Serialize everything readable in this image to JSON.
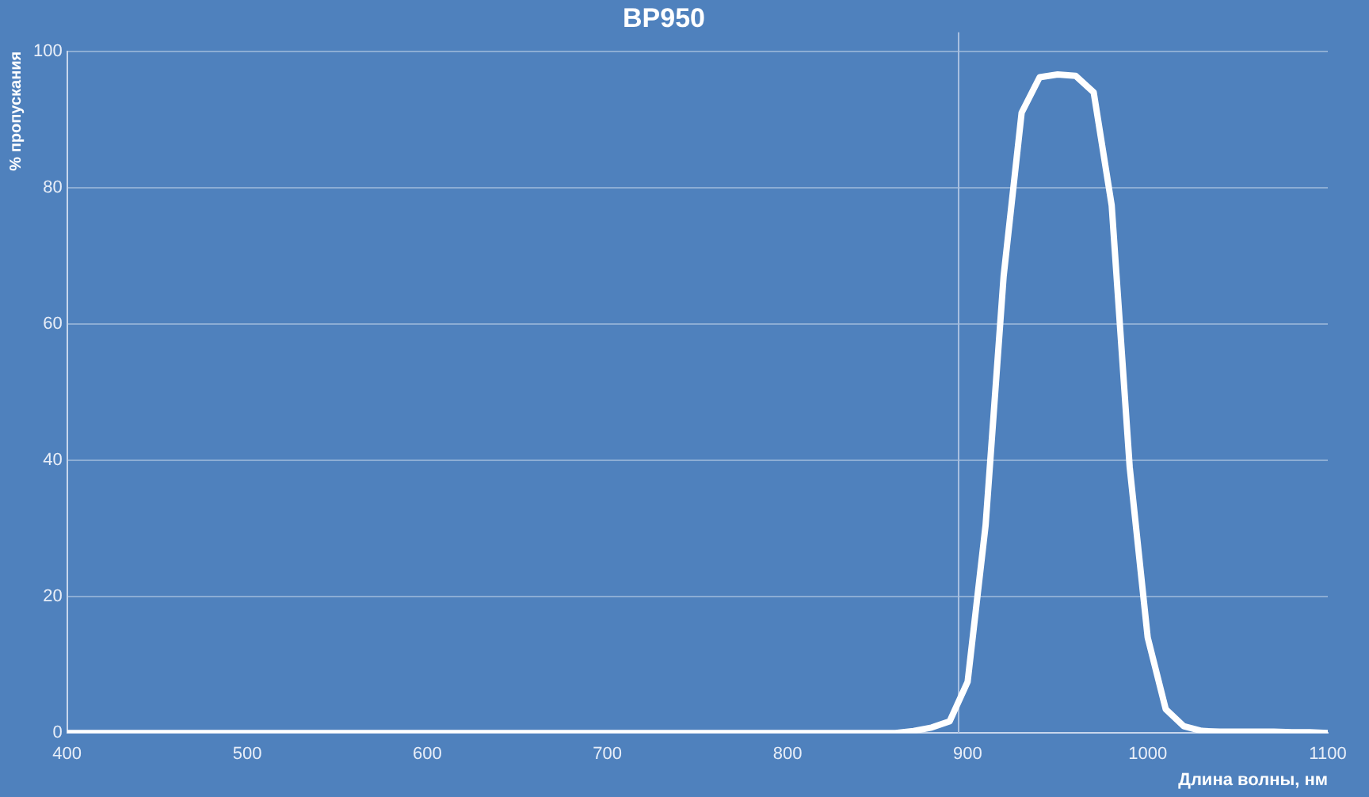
{
  "chart_data": {
    "type": "line",
    "title": "BP950",
    "xlabel": "Длина волны, нм",
    "ylabel": "% пропускания",
    "x": [
      400,
      500,
      600,
      700,
      800,
      850,
      860,
      870,
      880,
      890,
      900,
      910,
      920,
      930,
      940,
      950,
      960,
      970,
      980,
      990,
      1000,
      1010,
      1020,
      1030,
      1040,
      1050,
      1060,
      1070,
      1080,
      1090,
      1100
    ],
    "series": [
      {
        "color": "#ffffff",
        "values": [
          0,
          0,
          0,
          0,
          0,
          0,
          0,
          0.3,
          0.8,
          1.7,
          7.5,
          30.5,
          67,
          91,
          96.2,
          96.6,
          96.4,
          94,
          77.4,
          39,
          14,
          3.5,
          1,
          0.3,
          0.2,
          0.2,
          0.2,
          0.2,
          0.1,
          0.1,
          0
        ]
      }
    ],
    "xlim": [
      400,
      1100
    ],
    "xticks": [
      400,
      500,
      600,
      700,
      800,
      900,
      1000,
      1100
    ],
    "ylim": [
      0,
      100
    ],
    "yticks": [
      0,
      20,
      40,
      60,
      80,
      100
    ],
    "ref_lines": [
      {
        "axis": "x",
        "value": 895,
        "color": "#a9c0e0"
      }
    ],
    "grid": "y",
    "legend": false,
    "marker": "none",
    "line_style": "solid"
  }
}
